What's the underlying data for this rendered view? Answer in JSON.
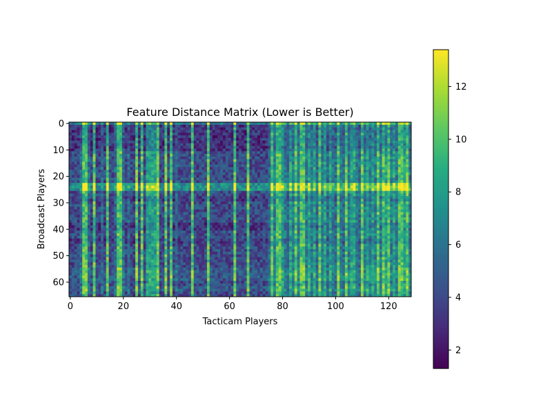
{
  "chart_data": {
    "type": "heatmap",
    "title": "Feature Distance Matrix (Lower is Better)",
    "xlabel": "Tacticam Players",
    "ylabel": "Broadcast Players",
    "n_cols": 129,
    "n_rows": 66,
    "x_ticks": [
      0,
      20,
      40,
      60,
      80,
      100,
      120
    ],
    "y_ticks": [
      0,
      10,
      20,
      30,
      40,
      50,
      60
    ],
    "colorbar": {
      "min": 1.3,
      "max": 13.4,
      "ticks": [
        2,
        4,
        6,
        8,
        10,
        12
      ]
    },
    "colormap": "viridis",
    "base_value": 5.6,
    "column_effects": [
      {
        "cols": [
          5,
          6,
          9,
          14,
          18,
          19,
          25,
          27,
          33,
          36,
          38,
          46,
          52,
          62,
          67,
          76,
          78,
          79,
          85,
          87,
          88,
          94,
          101,
          104,
          110,
          116,
          118,
          120,
          124,
          125,
          127
        ],
        "value": 4.5
      },
      {
        "cols": [
          29,
          30,
          31,
          32
        ],
        "value": 2.5
      },
      {
        "cols": [
          0,
          1,
          2,
          3,
          8,
          10,
          11,
          13,
          15,
          16,
          21,
          23,
          24,
          26,
          28,
          34,
          35,
          37,
          39,
          41,
          42,
          43,
          44,
          45,
          47,
          48,
          49,
          50,
          51,
          53,
          54,
          55,
          56,
          57,
          58,
          59,
          60,
          61,
          63,
          64,
          65,
          66,
          68,
          69,
          70,
          71,
          72,
          73,
          74
        ],
        "value": -1.5
      },
      {
        "cols": [
          80,
          83,
          90,
          92,
          96,
          98,
          106,
          107,
          112,
          114,
          119,
          122,
          126
        ],
        "value": 2.6
      },
      {
        "cols": [
          77,
          81,
          84,
          86,
          89,
          91,
          95,
          99,
          102,
          105,
          108,
          111,
          113,
          115,
          117,
          121,
          123,
          128
        ],
        "value": 0.8
      }
    ],
    "row_effects": [
      {
        "rows": [
          0
        ],
        "value": 2.0
      },
      {
        "rows": [
          1,
          2,
          3,
          4,
          5,
          6,
          7,
          8,
          9,
          10
        ],
        "value": -1.0
      },
      {
        "rows": [
          23,
          24,
          25
        ],
        "value": 3.2
      },
      {
        "rows": [
          28,
          29,
          38,
          39,
          40,
          44,
          45
        ],
        "value": -0.8
      },
      {
        "rows": [
          55,
          56,
          57,
          58,
          59,
          62,
          63
        ],
        "value": 0.6
      }
    ],
    "noise_amplitude": 1.6
  }
}
